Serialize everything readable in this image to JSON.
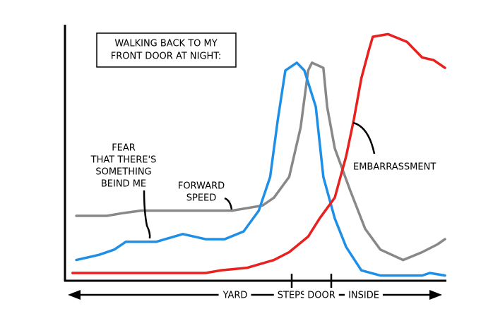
{
  "chart_data": {
    "type": "line",
    "title": [
      "WALKING BACK TO MY",
      "FRONT DOOR AT NIGHT:"
    ],
    "xlim": [
      0,
      100
    ],
    "ylim": [
      0,
      100
    ],
    "x_labels": [
      "YARD",
      "STEPS",
      "DOOR",
      "INSIDE"
    ],
    "series": [
      {
        "name": [
          "FEAR",
          "THAT THERE'S",
          "SOMETHING",
          "BEIND ME"
        ],
        "color": "#888888",
        "x": [
          3,
          11,
          15,
          20,
          28,
          37,
          44,
          52,
          55,
          59,
          62,
          64,
          65,
          68,
          69,
          71,
          75,
          79,
          83,
          89,
          94,
          98,
          100
        ],
        "values": [
          25,
          25,
          26,
          27,
          27,
          27,
          27,
          29,
          32,
          40,
          59,
          81,
          84,
          82,
          67,
          51,
          35,
          20,
          12,
          8,
          11,
          14,
          16
        ]
      },
      {
        "name": [
          "FORWARD",
          "SPEED"
        ],
        "color": "#1e8fe6",
        "x": [
          3,
          9,
          13,
          16,
          24,
          31,
          37,
          42,
          47,
          51,
          54,
          56,
          58,
          61,
          63,
          66,
          68,
          71,
          74,
          78,
          83,
          94,
          96,
          100
        ],
        "values": [
          8,
          10,
          12,
          15,
          15,
          18,
          16,
          16,
          19,
          27,
          40,
          62,
          81,
          84,
          81,
          67,
          40,
          24,
          13,
          4,
          2,
          2,
          3,
          2
        ]
      },
      {
        "name": [
          "EMBARRASSMENT"
        ],
        "color": "#e8201e",
        "x": [
          2,
          20,
          37,
          41,
          48,
          55,
          59,
          64,
          67,
          71,
          74,
          76,
          78,
          80,
          81,
          85,
          90,
          94,
          97,
          100
        ],
        "values": [
          3,
          3,
          3,
          4,
          5,
          8,
          11,
          17,
          24,
          32,
          48,
          62,
          78,
          89,
          94,
          95,
          92,
          86,
          85,
          82
        ]
      }
    ]
  }
}
